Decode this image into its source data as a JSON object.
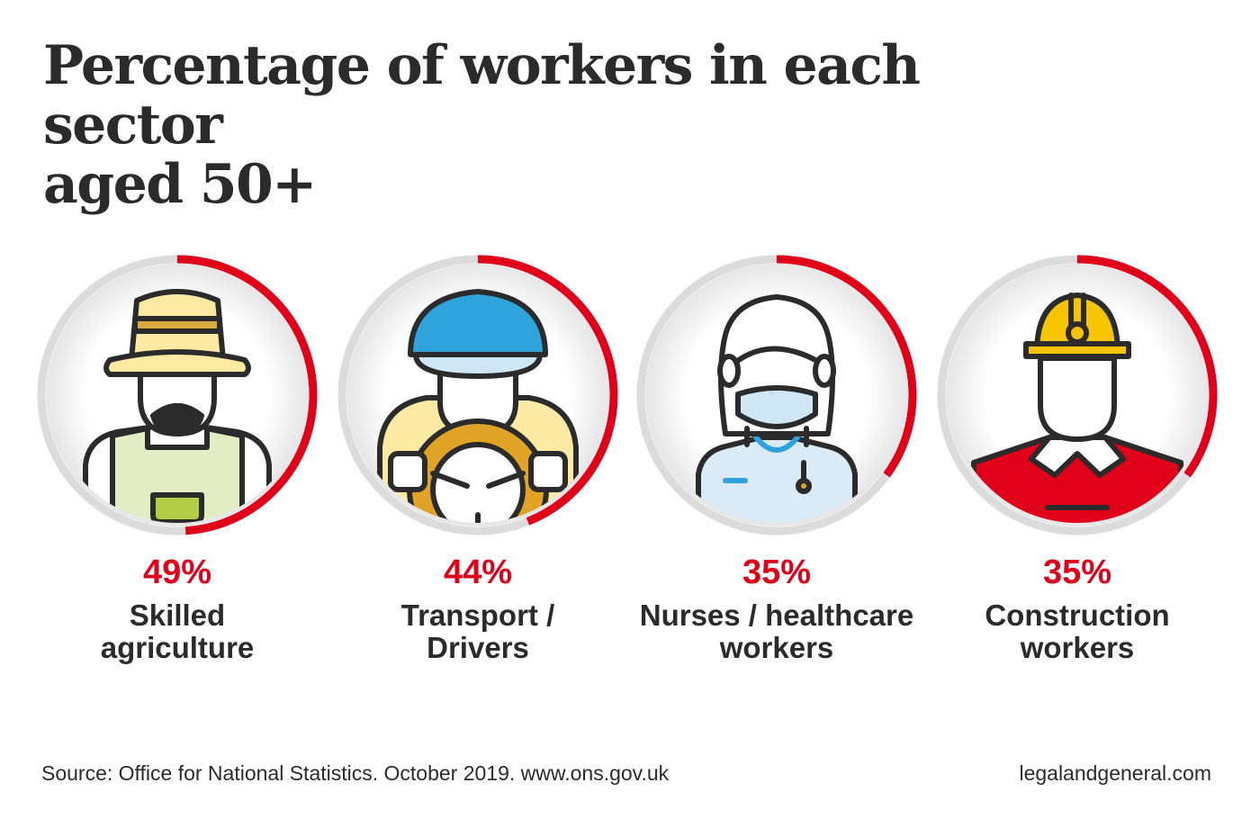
{
  "title": {
    "line1": "Percentage of workers in each sector",
    "line2": "aged 50+"
  },
  "chart_data": {
    "type": "ring-progress",
    "title": "Percentage of workers in each sector aged 50+",
    "unit": "%",
    "categories": [
      "Skilled agriculture",
      "Transport / Drivers",
      "Nurses / healthcare workers",
      "Construction workers"
    ],
    "values": [
      49,
      44,
      35,
      35
    ],
    "items": [
      {
        "pct_label": "49%",
        "value": 49,
        "label_lines": [
          "Skilled",
          "agriculture"
        ],
        "icon": "farmer-icon"
      },
      {
        "pct_label": "44%",
        "value": 44,
        "label_lines": [
          "Transport /",
          "Drivers"
        ],
        "icon": "driver-icon"
      },
      {
        "pct_label": "35%",
        "value": 35,
        "label_lines": [
          "Nurses / healthcare",
          "workers"
        ],
        "icon": "nurse-icon"
      },
      {
        "pct_label": "35%",
        "value": 35,
        "label_lines": [
          "Construction",
          "workers"
        ],
        "icon": "construction-worker-icon"
      }
    ],
    "colors": {
      "progress": "#e1001a",
      "track": "#dcdcdc",
      "text": "#2b2b2b"
    }
  },
  "footer": {
    "source": "Source: Office for National Statistics. October 2019.  www.ons.gov.uk",
    "brand": "legalandgeneral.com"
  }
}
